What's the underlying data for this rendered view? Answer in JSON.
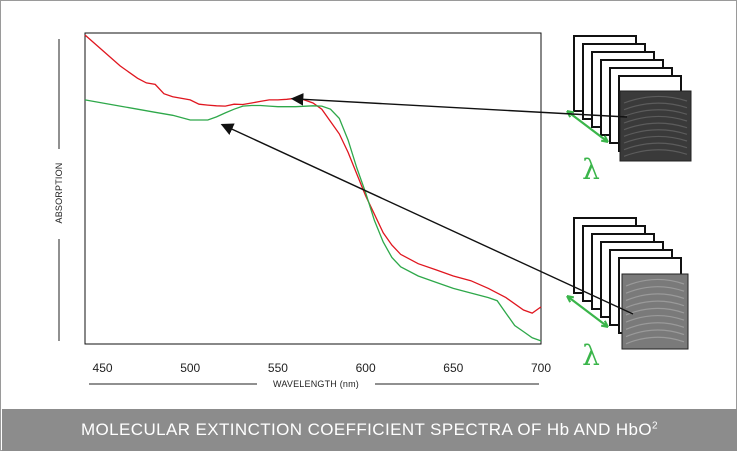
{
  "caption": {
    "text": "MOLECULAR EXTINCTION COEFFICIENT SPECTRA OF Hb AND HbO",
    "superscript": "2"
  },
  "chart_data": {
    "type": "line",
    "xlabel": "WAVELENGTH (nm)",
    "ylabel": "ABSORPTION",
    "xlim": [
      440,
      700
    ],
    "ylim": [
      0,
      1
    ],
    "xticks": [
      450,
      500,
      550,
      600,
      650,
      700
    ],
    "series": [
      {
        "color": "#e0161f",
        "x": [
          440,
          450,
          460,
          470,
          475,
          480,
          485,
          490,
          500,
          505,
          510,
          515,
          520,
          525,
          530,
          535,
          540,
          545,
          550,
          555,
          560,
          565,
          570,
          575,
          580,
          585,
          590,
          595,
          600,
          605,
          610,
          615,
          620,
          630,
          640,
          650,
          660,
          670,
          680,
          690,
          695,
          700
        ],
        "y": [
          1.0,
          0.95,
          0.9,
          0.86,
          0.845,
          0.84,
          0.81,
          0.8,
          0.79,
          0.776,
          0.773,
          0.771,
          0.77,
          0.776,
          0.775,
          0.78,
          0.785,
          0.79,
          0.79,
          0.792,
          0.795,
          0.79,
          0.78,
          0.76,
          0.72,
          0.68,
          0.62,
          0.55,
          0.48,
          0.42,
          0.36,
          0.32,
          0.29,
          0.26,
          0.24,
          0.22,
          0.205,
          0.18,
          0.15,
          0.11,
          0.1,
          0.12
        ]
      },
      {
        "color": "#2ea84a",
        "x": [
          440,
          450,
          460,
          470,
          480,
          490,
          500,
          510,
          515,
          520,
          525,
          530,
          535,
          540,
          545,
          550,
          560,
          570,
          575,
          580,
          585,
          590,
          595,
          600,
          605,
          610,
          615,
          620,
          630,
          640,
          650,
          660,
          670,
          675,
          680,
          685,
          690,
          695,
          700
        ],
        "y": [
          0.79,
          0.78,
          0.77,
          0.76,
          0.75,
          0.74,
          0.725,
          0.725,
          0.735,
          0.748,
          0.76,
          0.77,
          0.772,
          0.772,
          0.77,
          0.768,
          0.768,
          0.771,
          0.77,
          0.76,
          0.73,
          0.66,
          0.57,
          0.49,
          0.4,
          0.33,
          0.28,
          0.25,
          0.22,
          0.2,
          0.18,
          0.165,
          0.15,
          0.14,
          0.1,
          0.06,
          0.04,
          0.02,
          0.01
        ]
      }
    ]
  },
  "arrows": [
    {
      "from_stack": "upper",
      "target_series": 0,
      "target_x": 558
    },
    {
      "from_stack": "lower",
      "target_series": 1,
      "target_x": 518
    }
  ],
  "wavelength_symbol": "λ",
  "stack_frames": 6
}
